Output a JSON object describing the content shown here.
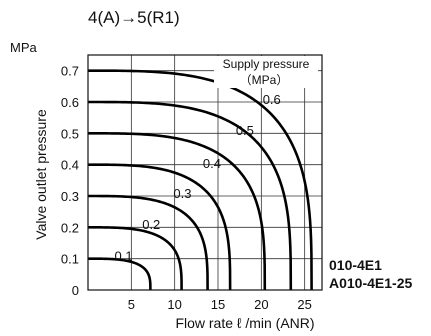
{
  "chart_data": {
    "type": "line",
    "title": "4(A)→5(R1)",
    "xlabel": "Flow rate  ℓ /min (ANR)",
    "ylabel": "Valve outlet pressure",
    "yunit": "MPa",
    "xlim": [
      0,
      27
    ],
    "ylim": [
      0,
      0.75
    ],
    "x_ticks": [
      5,
      10,
      15,
      20,
      25
    ],
    "y_ticks": [
      0,
      0.1,
      0.2,
      0.3,
      0.4,
      0.5,
      0.6,
      0.7
    ],
    "x_tick_labels": [
      "5",
      "10",
      "15",
      "20",
      "25"
    ],
    "y_tick_labels": [
      "0",
      "0.1",
      "0.2",
      "0.3",
      "0.4",
      "0.5",
      "0.6",
      "0.7"
    ],
    "grid": true,
    "legend": {
      "title": "Supply pressure",
      "unit": "（MPa）",
      "placement": "top-right"
    },
    "series": [
      {
        "name": "0.1",
        "supply_pressure": 0.1,
        "max_flow": 7.2
      },
      {
        "name": "0.2",
        "supply_pressure": 0.2,
        "max_flow": 10.8
      },
      {
        "name": "0.3",
        "supply_pressure": 0.3,
        "max_flow": 13.8
      },
      {
        "name": "0.4",
        "supply_pressure": 0.4,
        "max_flow": 16.4
      },
      {
        "name": "0.5",
        "supply_pressure": 0.5,
        "max_flow": 20.4
      },
      {
        "name": "0.6",
        "supply_pressure": 0.6,
        "max_flow": 23.4
      },
      {
        "name": "0.7",
        "supply_pressure": 0.7,
        "max_flow": 25.8
      }
    ],
    "models": [
      "010-4E1",
      "A010-4E1-25"
    ]
  }
}
